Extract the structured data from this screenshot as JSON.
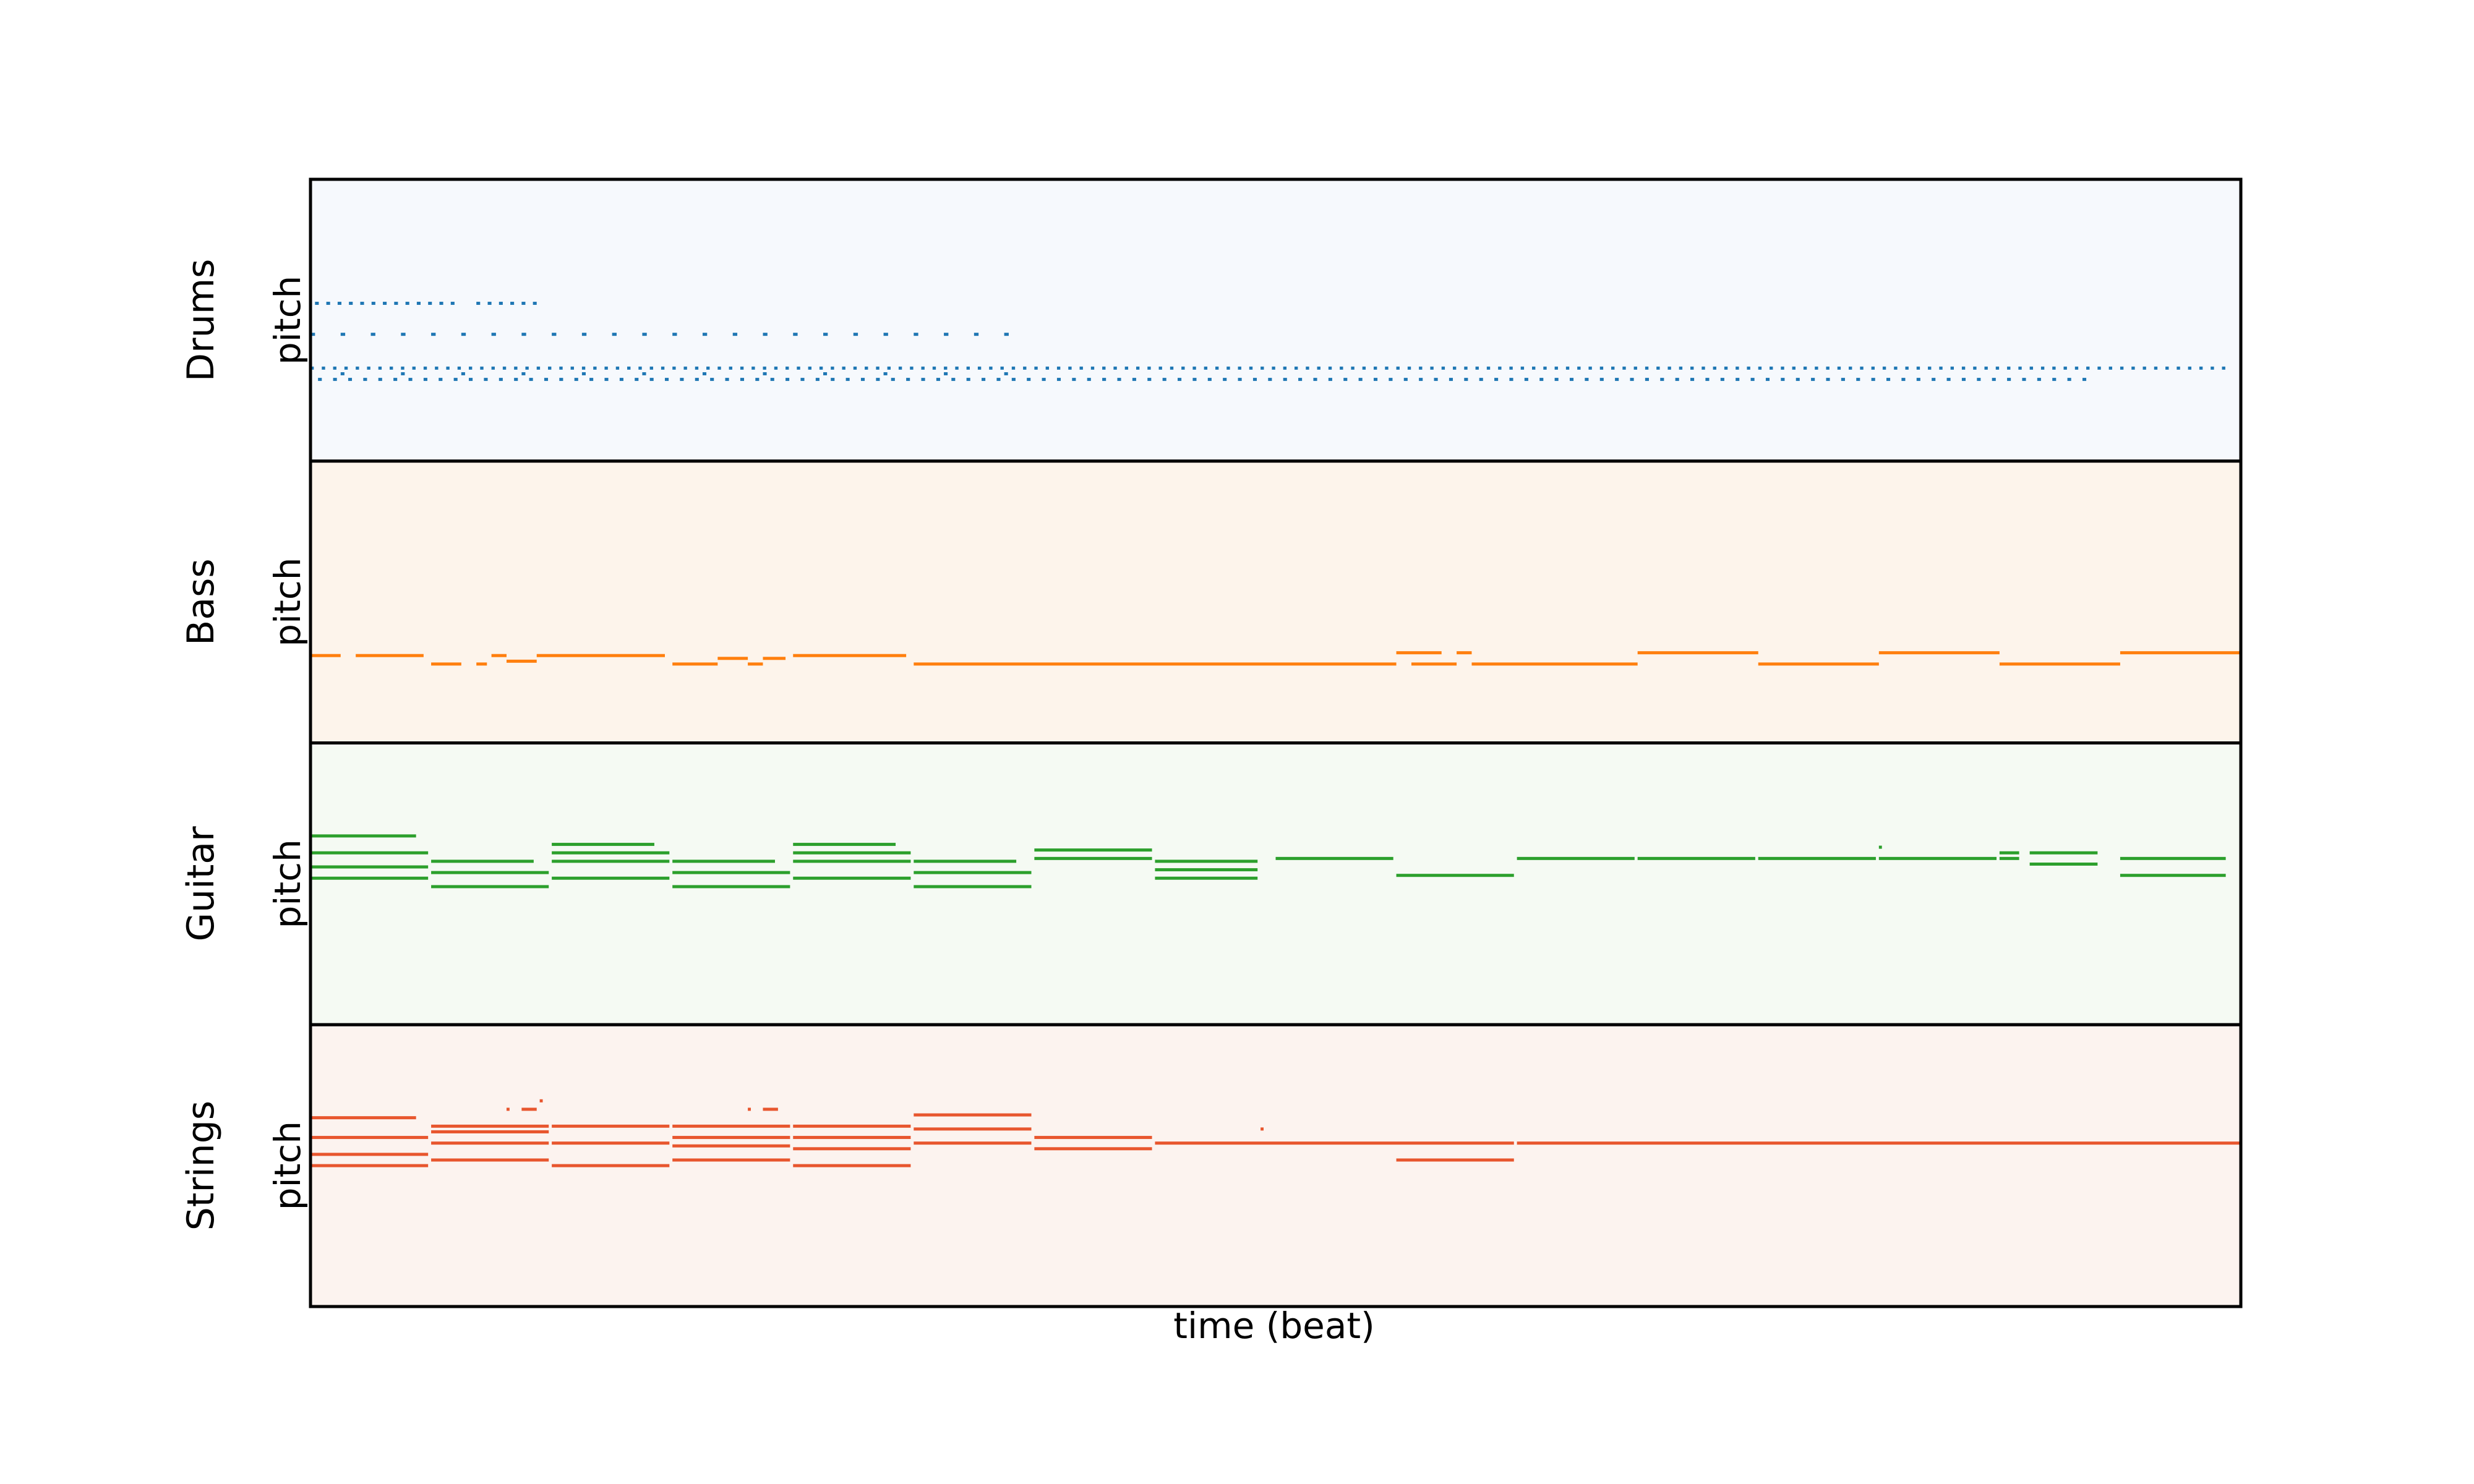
{
  "chart_data": {
    "type": "pianoroll",
    "xlabel": "time (beat)",
    "ylabel": "pitch",
    "xlim": [
      0,
      128
    ],
    "xticks": "none",
    "yticks": "none",
    "tracks": [
      {
        "name": "Drums",
        "color": "#1f77b4",
        "background": "#f6f9fd",
        "pitch_range": [
          0,
          100
        ],
        "patterns": [
          {
            "pitch": 56,
            "start": 0.3,
            "end": 9.7,
            "step": 0.75,
            "duration": 0.25
          },
          {
            "pitch": 56,
            "start": 11.0,
            "end": 15.5,
            "step": 0.75,
            "duration": 0.25
          },
          {
            "pitch": 45,
            "start": 0.0,
            "end": 48.0,
            "step": 2.0,
            "duration": 0.3
          },
          {
            "pitch": 33,
            "start": 0.0,
            "end": 127.5,
            "step": 0.75,
            "duration": 0.22
          },
          {
            "pitch": 29,
            "start": 0.5,
            "end": 118.0,
            "step": 1.0,
            "duration": 0.25
          },
          {
            "pitch": 31,
            "start": 2.0,
            "end": 50.0,
            "step": 4.0,
            "duration": 0.25
          }
        ]
      },
      {
        "name": "Bass",
        "color": "#ff7f0e",
        "background": "#fdf4eb",
        "pitch_range": [
          0,
          100
        ],
        "notes": [
          {
            "pitch": 31,
            "start": 0.0,
            "end": 2.0
          },
          {
            "pitch": 31,
            "start": 3.0,
            "end": 7.5
          },
          {
            "pitch": 28,
            "start": 8.0,
            "end": 10.0
          },
          {
            "pitch": 28,
            "start": 11.0,
            "end": 11.7
          },
          {
            "pitch": 31,
            "start": 12.0,
            "end": 13.0
          },
          {
            "pitch": 29,
            "start": 13.0,
            "end": 15.0
          },
          {
            "pitch": 31,
            "start": 15.0,
            "end": 23.5
          },
          {
            "pitch": 28,
            "start": 24.0,
            "end": 27.0
          },
          {
            "pitch": 30,
            "start": 27.0,
            "end": 29.0
          },
          {
            "pitch": 28,
            "start": 29.0,
            "end": 30.0
          },
          {
            "pitch": 30,
            "start": 30.0,
            "end": 31.5
          },
          {
            "pitch": 31,
            "start": 32.0,
            "end": 39.5
          },
          {
            "pitch": 28,
            "start": 40.0,
            "end": 72.0
          },
          {
            "pitch": 32,
            "start": 72.0,
            "end": 75.0
          },
          {
            "pitch": 28,
            "start": 73.0,
            "end": 76.0
          },
          {
            "pitch": 32,
            "start": 76.0,
            "end": 77.0
          },
          {
            "pitch": 28,
            "start": 77.0,
            "end": 88.0
          },
          {
            "pitch": 32,
            "start": 88.0,
            "end": 96.0
          },
          {
            "pitch": 28,
            "start": 96.0,
            "end": 104.0
          },
          {
            "pitch": 32,
            "start": 104.0,
            "end": 112.0
          },
          {
            "pitch": 28,
            "start": 112.0,
            "end": 120.0
          },
          {
            "pitch": 32,
            "start": 120.0,
            "end": 128.0
          }
        ]
      },
      {
        "name": "Guitar",
        "color": "#2ca02c",
        "background": "#f5faf3",
        "pitch_range": [
          0,
          100
        ],
        "notes": [
          {
            "pitch": 67,
            "start": 0.0,
            "end": 7.0
          },
          {
            "pitch": 61,
            "start": 0.0,
            "end": 7.8
          },
          {
            "pitch": 56,
            "start": 0.0,
            "end": 7.8
          },
          {
            "pitch": 52,
            "start": 0.0,
            "end": 7.8
          },
          {
            "pitch": 58,
            "start": 8.0,
            "end": 14.8
          },
          {
            "pitch": 54,
            "start": 8.0,
            "end": 15.8
          },
          {
            "pitch": 49,
            "start": 8.0,
            "end": 15.8
          },
          {
            "pitch": 64,
            "start": 16.0,
            "end": 22.8
          },
          {
            "pitch": 61,
            "start": 16.0,
            "end": 23.8
          },
          {
            "pitch": 58,
            "start": 16.0,
            "end": 23.8
          },
          {
            "pitch": 52,
            "start": 16.0,
            "end": 23.8
          },
          {
            "pitch": 58,
            "start": 24.0,
            "end": 30.8
          },
          {
            "pitch": 54,
            "start": 24.0,
            "end": 31.8
          },
          {
            "pitch": 49,
            "start": 24.0,
            "end": 31.8
          },
          {
            "pitch": 64,
            "start": 32.0,
            "end": 38.8
          },
          {
            "pitch": 61,
            "start": 32.0,
            "end": 39.8
          },
          {
            "pitch": 58,
            "start": 32.0,
            "end": 39.8
          },
          {
            "pitch": 52,
            "start": 32.0,
            "end": 39.8
          },
          {
            "pitch": 58,
            "start": 40.0,
            "end": 46.8
          },
          {
            "pitch": 54,
            "start": 40.0,
            "end": 47.8
          },
          {
            "pitch": 49,
            "start": 40.0,
            "end": 47.8
          },
          {
            "pitch": 62,
            "start": 48.0,
            "end": 55.8
          },
          {
            "pitch": 59,
            "start": 48.0,
            "end": 55.8
          },
          {
            "pitch": 58,
            "start": 56.0,
            "end": 62.8
          },
          {
            "pitch": 55,
            "start": 56.0,
            "end": 62.8
          },
          {
            "pitch": 52,
            "start": 56.0,
            "end": 62.8
          },
          {
            "pitch": 59,
            "start": 64.0,
            "end": 71.8
          },
          {
            "pitch": 53,
            "start": 72.0,
            "end": 79.8
          },
          {
            "pitch": 59,
            "start": 80.0,
            "end": 87.8
          },
          {
            "pitch": 59,
            "start": 88.0,
            "end": 95.8
          },
          {
            "pitch": 59,
            "start": 96.0,
            "end": 103.8
          },
          {
            "pitch": 63,
            "start": 104.0,
            "end": 104.2
          },
          {
            "pitch": 59,
            "start": 104.0,
            "end": 111.8
          },
          {
            "pitch": 61,
            "start": 112.0,
            "end": 113.3
          },
          {
            "pitch": 61,
            "start": 114.0,
            "end": 118.5
          },
          {
            "pitch": 59,
            "start": 112.0,
            "end": 113.3
          },
          {
            "pitch": 57,
            "start": 114.0,
            "end": 118.5
          },
          {
            "pitch": 59,
            "start": 120.0,
            "end": 127.0
          },
          {
            "pitch": 53,
            "start": 120.0,
            "end": 127.0
          }
        ]
      },
      {
        "name": "Strings",
        "color": "#e8562e",
        "background": "#fcf3ef",
        "pitch_range": [
          0,
          100
        ],
        "notes": [
          {
            "pitch": 67,
            "start": 0.0,
            "end": 7.0
          },
          {
            "pitch": 60,
            "start": 0.0,
            "end": 7.8
          },
          {
            "pitch": 54,
            "start": 0.0,
            "end": 7.8
          },
          {
            "pitch": 50,
            "start": 0.0,
            "end": 7.8
          },
          {
            "pitch": 64,
            "start": 8.0,
            "end": 15.8
          },
          {
            "pitch": 62,
            "start": 8.0,
            "end": 15.8
          },
          {
            "pitch": 58,
            "start": 8.0,
            "end": 15.8
          },
          {
            "pitch": 52,
            "start": 8.0,
            "end": 15.8
          },
          {
            "pitch": 70,
            "start": 13.0,
            "end": 13.2
          },
          {
            "pitch": 70,
            "start": 14.0,
            "end": 15.0
          },
          {
            "pitch": 73,
            "start": 15.2,
            "end": 15.4
          },
          {
            "pitch": 64,
            "start": 16.0,
            "end": 23.8
          },
          {
            "pitch": 58,
            "start": 16.0,
            "end": 23.8
          },
          {
            "pitch": 50,
            "start": 16.0,
            "end": 23.8
          },
          {
            "pitch": 64,
            "start": 24.0,
            "end": 31.8
          },
          {
            "pitch": 60,
            "start": 24.0,
            "end": 31.8
          },
          {
            "pitch": 57,
            "start": 24.0,
            "end": 31.8
          },
          {
            "pitch": 52,
            "start": 24.0,
            "end": 31.8
          },
          {
            "pitch": 70,
            "start": 29.0,
            "end": 29.2
          },
          {
            "pitch": 70,
            "start": 30.0,
            "end": 31.0
          },
          {
            "pitch": 64,
            "start": 32.0,
            "end": 39.8
          },
          {
            "pitch": 60,
            "start": 32.0,
            "end": 39.8
          },
          {
            "pitch": 56,
            "start": 32.0,
            "end": 39.8
          },
          {
            "pitch": 50,
            "start": 32.0,
            "end": 39.8
          },
          {
            "pitch": 68,
            "start": 40.0,
            "end": 47.8
          },
          {
            "pitch": 63,
            "start": 40.0,
            "end": 47.8
          },
          {
            "pitch": 58,
            "start": 40.0,
            "end": 47.8
          },
          {
            "pitch": 60,
            "start": 48.0,
            "end": 55.8
          },
          {
            "pitch": 56,
            "start": 48.0,
            "end": 55.8
          },
          {
            "pitch": 63,
            "start": 63.0,
            "end": 63.2
          },
          {
            "pitch": 58,
            "start": 56.0,
            "end": 79.8
          },
          {
            "pitch": 52,
            "start": 72.0,
            "end": 79.8
          },
          {
            "pitch": 58,
            "start": 80.0,
            "end": 128.0
          }
        ]
      }
    ]
  }
}
